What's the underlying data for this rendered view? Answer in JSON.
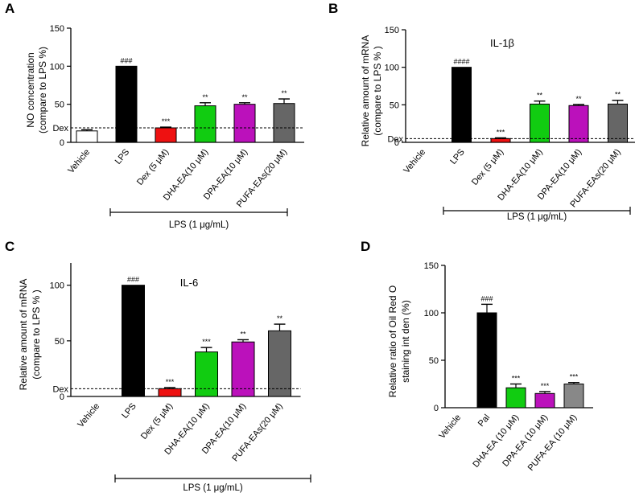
{
  "panels": [
    {
      "label": "A",
      "title": "",
      "ylabel_line1": "NO concentration",
      "ylabel_line2": "(compare to LPS %)",
      "group_label": "LPS (1 μg/mL)",
      "dex_label": "Dex",
      "chart_data": {
        "type": "bar",
        "categories": [
          "Vehicle",
          "LPS",
          "Dex (5 μM)",
          "DHA-EA(10 μM)",
          "DPA-EA(10 μM)",
          "PUFA-EAs(20 μM)"
        ],
        "values": [
          15,
          100,
          19,
          48,
          50,
          51
        ],
        "errors": [
          1.5,
          0,
          1,
          4,
          2,
          6
        ],
        "colors": [
          "#ffffff",
          "#000000",
          "#ee1111",
          "#11cc11",
          "#bb11bb",
          "#666666"
        ],
        "significance": [
          "",
          "###",
          "***",
          "**",
          "**",
          "**"
        ],
        "yticks": [
          0,
          50,
          100,
          150
        ],
        "ylim": [
          0,
          150
        ],
        "dex_line": 19,
        "title": "",
        "ylabel": "NO concentration (compare to LPS %)"
      }
    },
    {
      "label": "B",
      "title": "IL-1β",
      "ylabel_line1": "Relative amount of mRNA",
      "ylabel_line2": "(compare to LPS % )",
      "group_label": "LPS (1 μg/mL)",
      "dex_label": "Dex",
      "chart_data": {
        "type": "bar",
        "categories": [
          "Vehicle",
          "LPS",
          "Dex (5 μM)",
          "DHA-EA(10 μM)",
          "DPA-EA(10 μM)",
          "PUFA-EAs(20 μM)"
        ],
        "values": [
          0,
          100,
          5,
          51,
          49,
          51
        ],
        "errors": [
          0,
          0,
          1,
          4,
          1.5,
          5
        ],
        "colors": [
          "#ffffff",
          "#000000",
          "#ee1111",
          "#11cc11",
          "#bb11bb",
          "#666666"
        ],
        "significance": [
          "",
          "####",
          "***",
          "**",
          "**",
          "**"
        ],
        "yticks": [
          0,
          50,
          100,
          150
        ],
        "ylim": [
          0,
          150
        ],
        "dex_line": 5,
        "title": "IL-1β",
        "ylabel": "Relative amount of mRNA (compare to LPS % )"
      }
    },
    {
      "label": "C",
      "title": "IL-6",
      "ylabel_line1": "Relative amount of mRNA",
      "ylabel_line2": "(compare to LPS % )",
      "group_label": "LPS (1 μg/mL)",
      "dex_label": "Dex",
      "chart_data": {
        "type": "bar",
        "categories": [
          "Vehicle",
          "LPS",
          "Dex (5 μM)",
          "DHA-EA(10 μM)",
          "DPA-EA(10 μM)",
          "PUFA-EAs(20 μM)"
        ],
        "values": [
          0,
          100,
          7,
          40,
          49,
          59
        ],
        "errors": [
          0,
          0,
          1,
          4,
          2,
          6
        ],
        "colors": [
          "#ffffff",
          "#000000",
          "#ee1111",
          "#11cc11",
          "#bb11bb",
          "#666666"
        ],
        "significance": [
          "",
          "###",
          "***",
          "***",
          "**",
          "**"
        ],
        "yticks": [
          0,
          50,
          100
        ],
        "ylim": [
          0,
          120
        ],
        "dex_line": 7,
        "title": "IL-6",
        "ylabel": "Relative amount of mRNA (compare to LPS % )"
      }
    },
    {
      "label": "D",
      "title": "",
      "ylabel_line1": "Relative ratio of Oil Red O",
      "ylabel_line2": "staining int den (%)",
      "group_label": "",
      "dex_label": "",
      "chart_data": {
        "type": "bar",
        "categories": [
          "Vehicle",
          "Pal",
          "DHA-EA (10 μM)",
          "DPA-EA (10 μM)",
          "PUFA-EA (10 μM)"
        ],
        "values": [
          0,
          100,
          21,
          15,
          25
        ],
        "errors": [
          0,
          9,
          4,
          2,
          1.5
        ],
        "colors": [
          "#ffffff",
          "#000000",
          "#11cc11",
          "#bb11bb",
          "#888888"
        ],
        "significance": [
          "",
          "###",
          "***",
          "***",
          "***"
        ],
        "yticks": [
          0,
          50,
          100,
          150
        ],
        "ylim": [
          0,
          150
        ],
        "dex_line": null,
        "title": "",
        "ylabel": "Relative ratio of Oil Red O staining int den (%)"
      }
    }
  ]
}
